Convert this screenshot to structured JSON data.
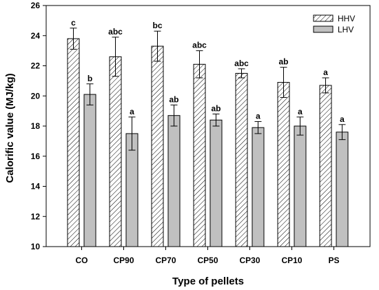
{
  "chart_data": {
    "type": "bar",
    "title": "",
    "xlabel": "Type of pellets",
    "ylabel": "Calorific value (MJ/kg)",
    "ylim": [
      10,
      26
    ],
    "yticks": [
      10,
      12,
      14,
      16,
      18,
      20,
      22,
      24,
      26
    ],
    "categories": [
      "CO",
      "CP90",
      "CP70",
      "CP50",
      "CP30",
      "CP10",
      "PS"
    ],
    "series": [
      {
        "name": "HHV",
        "fill": "hatched",
        "values": [
          23.8,
          22.6,
          23.3,
          22.1,
          21.5,
          20.9,
          20.7
        ],
        "errors": [
          0.7,
          1.3,
          1.0,
          0.9,
          0.3,
          1.0,
          0.5
        ],
        "labels": [
          "c",
          "abc",
          "bc",
          "abc",
          "abc",
          "ab",
          "a"
        ]
      },
      {
        "name": "LHV",
        "fill": "#c0c0c0",
        "values": [
          20.1,
          17.5,
          18.7,
          18.4,
          17.9,
          18.0,
          17.6
        ],
        "errors": [
          0.7,
          1.1,
          0.7,
          0.4,
          0.4,
          0.6,
          0.5
        ],
        "labels": [
          "b",
          "a",
          "ab",
          "ab",
          "a",
          "a",
          "a"
        ]
      }
    ],
    "legend": {
      "position": "top-right",
      "entries": [
        "HHV",
        "LHV"
      ]
    },
    "grid": false,
    "colors": {
      "axis": "#000000",
      "bar_edge": "#000000",
      "lhv_fill": "#c0c0c0",
      "hatch": "#000000"
    }
  }
}
